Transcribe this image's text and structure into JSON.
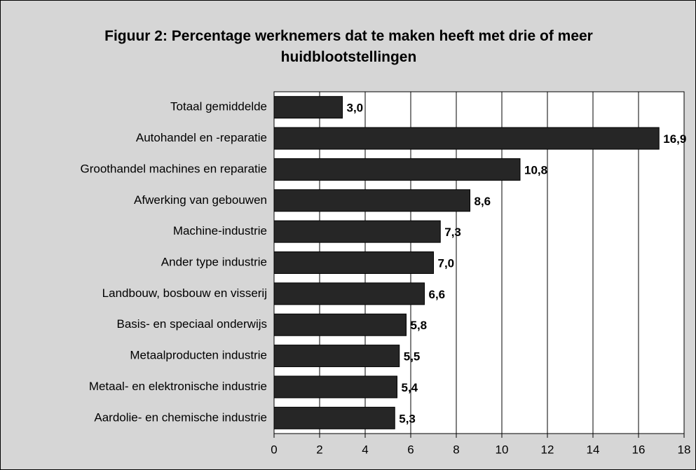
{
  "chart_data": {
    "type": "barh",
    "title": "Figuur 2: Percentage werknemers dat te maken heeft met drie of meer huidblootstellingen",
    "categories": [
      "Totaal gemiddelde",
      "Autohandel en -reparatie",
      "Groothandel machines en reparatie",
      "Afwerking van gebouwen",
      "Machine-industrie",
      "Ander type industrie",
      "Landbouw, bosbouw en visserij",
      "Basis- en speciaal onderwijs",
      "Metaalproducten industrie",
      "Metaal- en elektronische industrie",
      "Aardolie- en chemische industrie"
    ],
    "values": [
      3.0,
      16.9,
      10.8,
      8.6,
      7.3,
      7.0,
      6.6,
      5.8,
      5.5,
      5.4,
      5.3
    ],
    "value_labels": [
      "3,0",
      "16,9",
      "10,8",
      "8,6",
      "7,3",
      "7,0",
      "6,6",
      "5,8",
      "5,5",
      "5,4",
      "5,3"
    ],
    "color": "#262626",
    "xlim": [
      0,
      18
    ],
    "xticks": [
      0,
      2,
      4,
      6,
      8,
      10,
      12,
      14,
      16,
      18
    ],
    "grid": true
  }
}
